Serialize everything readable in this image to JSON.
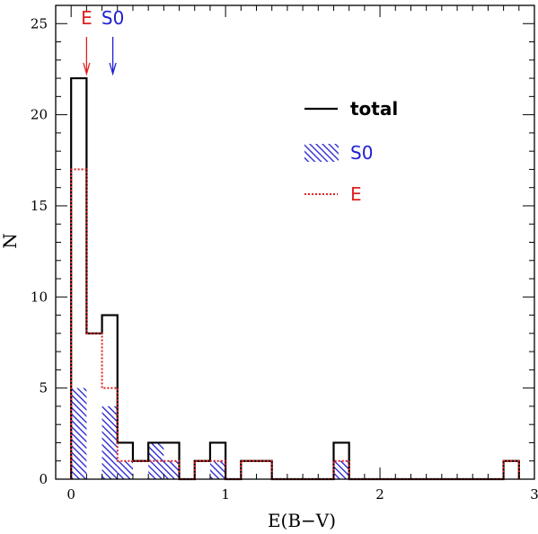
{
  "chart_data": {
    "type": "histogram",
    "xlabel": "E(B−V)",
    "ylabel": "N",
    "xlim": [
      -0.1,
      3.0
    ],
    "ylim": [
      0,
      26
    ],
    "x_ticks": [
      0,
      1,
      2,
      3
    ],
    "x_tick_labels": [
      "0",
      "1",
      "2",
      "3"
    ],
    "y_ticks": [
      0,
      5,
      10,
      15,
      20,
      25
    ],
    "y_tick_labels": [
      "0",
      "5",
      "10",
      "15",
      "20",
      "25"
    ],
    "bin_edges": [
      0.0,
      0.1,
      0.2,
      0.3,
      0.4,
      0.5,
      0.6,
      0.7,
      0.8,
      0.9,
      1.0,
      1.1,
      1.2,
      1.3,
      1.4,
      1.5,
      1.6,
      1.7,
      1.8,
      1.9,
      2.0,
      2.1,
      2.2,
      2.3,
      2.4,
      2.5,
      2.6,
      2.7,
      2.8,
      2.9
    ],
    "series": [
      {
        "name": "total",
        "style": "solid",
        "color": "#000000",
        "values": [
          22,
          8,
          9,
          2,
          1,
          2,
          2,
          0,
          1,
          2,
          0,
          1,
          1,
          0,
          0,
          0,
          0,
          2,
          0,
          0,
          0,
          0,
          0,
          0,
          0,
          0,
          0,
          0,
          1
        ]
      },
      {
        "name": "S0",
        "style": "hatched",
        "color": "#2020d0",
        "values": [
          5,
          0,
          4,
          1,
          0,
          2,
          1,
          0,
          0,
          1,
          0,
          0,
          0,
          0,
          0,
          0,
          0,
          1,
          0,
          0,
          0,
          0,
          0,
          0,
          0,
          0,
          0,
          0,
          0
        ]
      },
      {
        "name": "E",
        "style": "dotted",
        "color": "#e02020",
        "values": [
          17,
          8,
          5,
          1,
          1,
          1,
          1,
          0,
          1,
          1,
          0,
          1,
          1,
          0,
          0,
          0,
          0,
          1,
          0,
          0,
          0,
          0,
          0,
          0,
          0,
          0,
          0,
          0,
          1
        ]
      }
    ],
    "legend": {
      "placement": "top-right",
      "entries": [
        {
          "label": "total",
          "color": "#000000",
          "style": "solid"
        },
        {
          "label": "S0",
          "color": "#2020d0",
          "style": "hatched"
        },
        {
          "label": "E",
          "color": "#e02020",
          "style": "dotted"
        }
      ]
    },
    "annotations": [
      {
        "label": "E",
        "x": 0.1,
        "color": "#e02020",
        "type": "arrow"
      },
      {
        "label": "S0",
        "x": 0.27,
        "color": "#2020d0",
        "type": "arrow"
      }
    ]
  }
}
